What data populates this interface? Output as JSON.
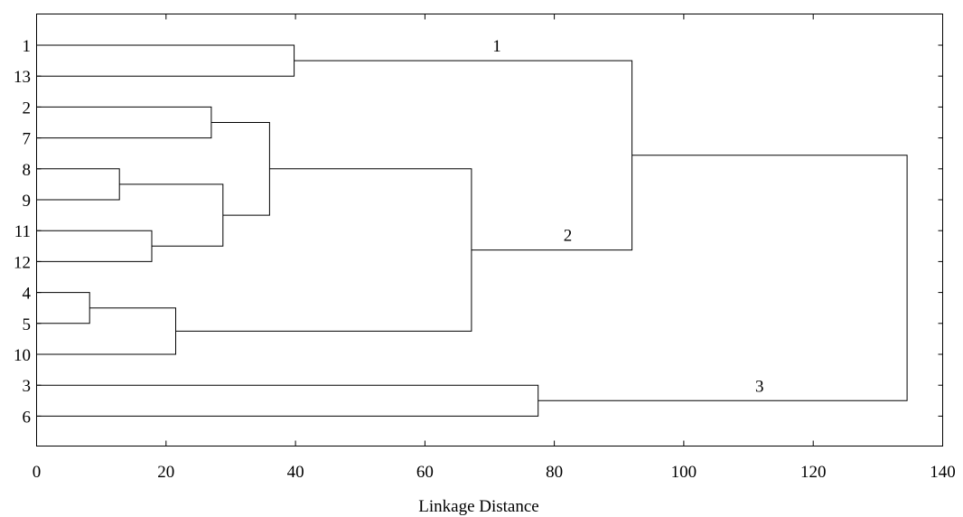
{
  "chart_data": {
    "type": "dendrogram",
    "xlabel": "Linkage Distance",
    "xlim": [
      0,
      140
    ],
    "x_ticks": [
      0,
      20,
      40,
      60,
      80,
      100,
      120,
      140
    ],
    "grid": false,
    "leaves": [
      "1",
      "13",
      "2",
      "7",
      "8",
      "9",
      "11",
      "12",
      "4",
      "5",
      "10",
      "3",
      "6"
    ],
    "merges": [
      {
        "id": "m1_13",
        "left": "1",
        "right": "13",
        "distance": 39.8
      },
      {
        "id": "m2_7",
        "left": "2",
        "right": "7",
        "distance": 27.0
      },
      {
        "id": "m8_9",
        "left": "8",
        "right": "9",
        "distance": 12.8
      },
      {
        "id": "m11_12",
        "left": "11",
        "right": "12",
        "distance": 17.8
      },
      {
        "id": "m8_12",
        "left": "m8_9",
        "right": "m11_12",
        "distance": 28.8
      },
      {
        "id": "m2_12",
        "left": "m2_7",
        "right": "m8_12",
        "distance": 36.0
      },
      {
        "id": "m4_5",
        "left": "4",
        "right": "5",
        "distance": 8.2
      },
      {
        "id": "m4_10",
        "left": "m4_5",
        "right": "10",
        "distance": 21.5
      },
      {
        "id": "m2_10",
        "left": "m2_12",
        "right": "m4_10",
        "distance": 67.2
      },
      {
        "id": "mA",
        "left": "m1_13",
        "right": "m2_10",
        "distance": 92.0
      },
      {
        "id": "m3_6",
        "left": "3",
        "right": "6",
        "distance": 77.5
      },
      {
        "id": "root",
        "left": "mA",
        "right": "m3_6",
        "distance": 134.5
      }
    ],
    "cluster_labels": [
      {
        "text": "1",
        "branch": "m1_13"
      },
      {
        "text": "2",
        "branch": "m2_10"
      },
      {
        "text": "3",
        "branch": "m3_6"
      }
    ]
  }
}
